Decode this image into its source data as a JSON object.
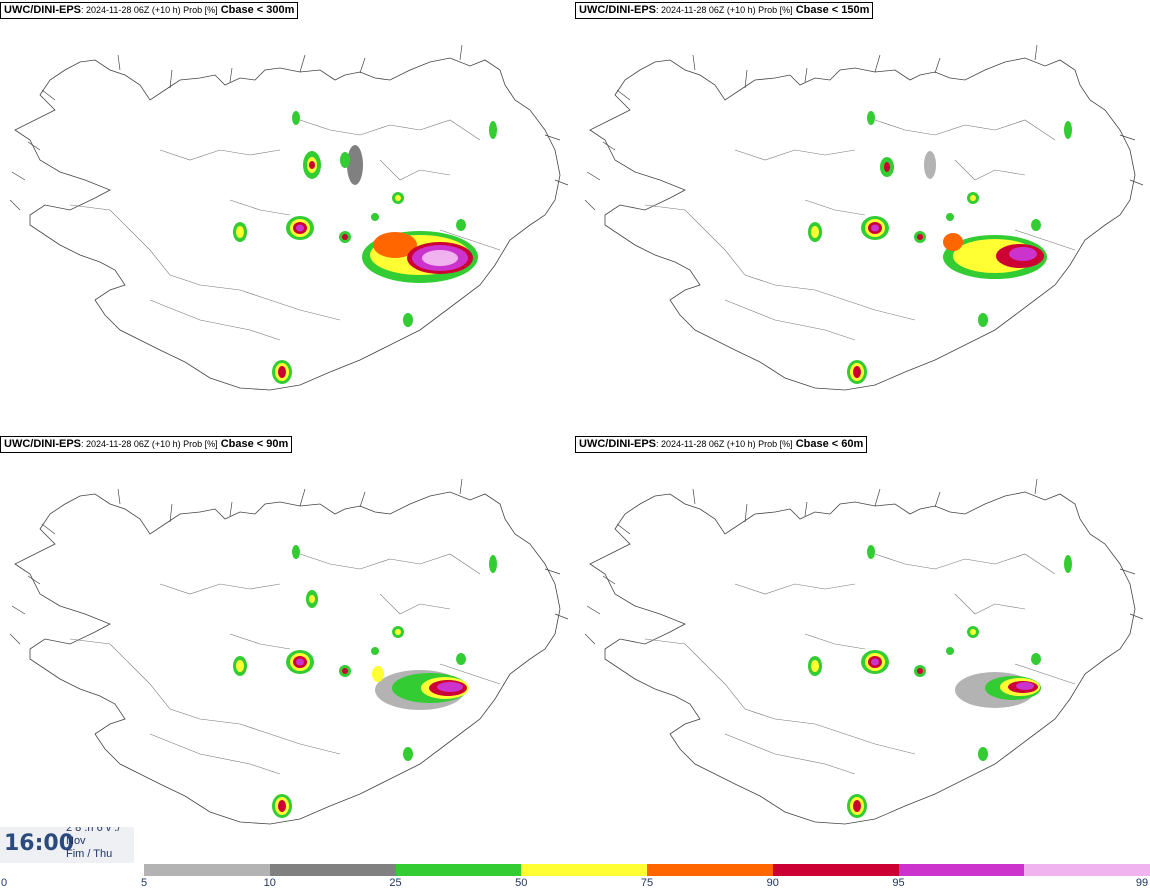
{
  "panels": [
    {
      "source": "UWC/DINI-EPS",
      "meta": ": 2024-11-28 06Z (+10 h) Prob [%]",
      "variable": "Cbase < 300m"
    },
    {
      "source": "UWC/DINI-EPS",
      "meta": ": 2024-11-28 06Z (+10 h) Prob [%]",
      "variable": "Cbase < 150m"
    },
    {
      "source": "UWC/DINI-EPS",
      "meta": ": 2024-11-28 06Z (+10 h) Prob [%]",
      "variable": "Cbase < 90m"
    },
    {
      "source": "UWC/DINI-EPS",
      "meta": ": 2024-11-28 06Z (+10 h) Prob [%]",
      "variable": "Cbase < 60m"
    }
  ],
  "time": {
    "clock": "16:00",
    "line1": "2 8 .n 6 v ./",
    "line2": "Nov",
    "line3": "Fim / Thu"
  },
  "legend": {
    "ticks": [
      "0",
      "5",
      "10",
      "25",
      "50",
      "75",
      "90",
      "95",
      "99"
    ],
    "colors": [
      "#b3b3b3",
      "#808080",
      "#33cc33",
      "#ffff33",
      "#ff6600",
      "#cc0033",
      "#cc33cc",
      "#f0b3f0"
    ]
  }
}
